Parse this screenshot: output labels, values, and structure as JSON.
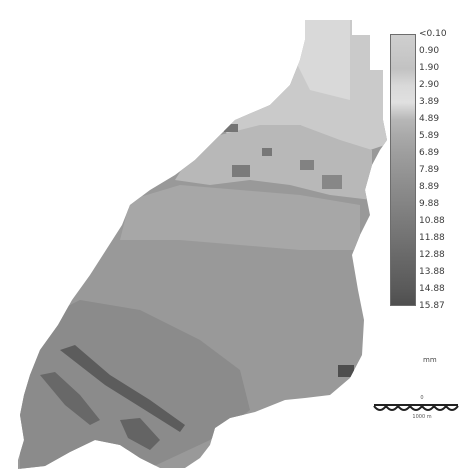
{
  "legend": {
    "labels": [
      "<0.10",
      "0.90",
      "1.90",
      "2.90",
      "3.89",
      "4.89",
      "5.89",
      "6.89",
      "7.89",
      "8.89",
      "9.88",
      "10.88",
      "11.88",
      "12.88",
      "13.88",
      "14.88",
      "15.87"
    ],
    "unit": "mm",
    "colors": [
      "#cfcfcf",
      "#c9c9c9",
      "#c2c2c2",
      "#d9d9d9",
      "#e0e0e0",
      "#b7b7b7",
      "#a9a9a9",
      "#9e9e9e",
      "#959595",
      "#8c8c8c",
      "#848484",
      "#7b7b7b",
      "#737373",
      "#6a6a6a",
      "#626262",
      "#5a5a5a",
      "#4f4f4f"
    ]
  },
  "scalebar": {
    "top_label": "0",
    "bottom_label": "1000 m"
  },
  "map": {
    "region_fill": "#9f9f9f",
    "light_zone": "#d2d2d2",
    "mid_zone": "#bdbdbd",
    "dark_streak": "#565656"
  }
}
